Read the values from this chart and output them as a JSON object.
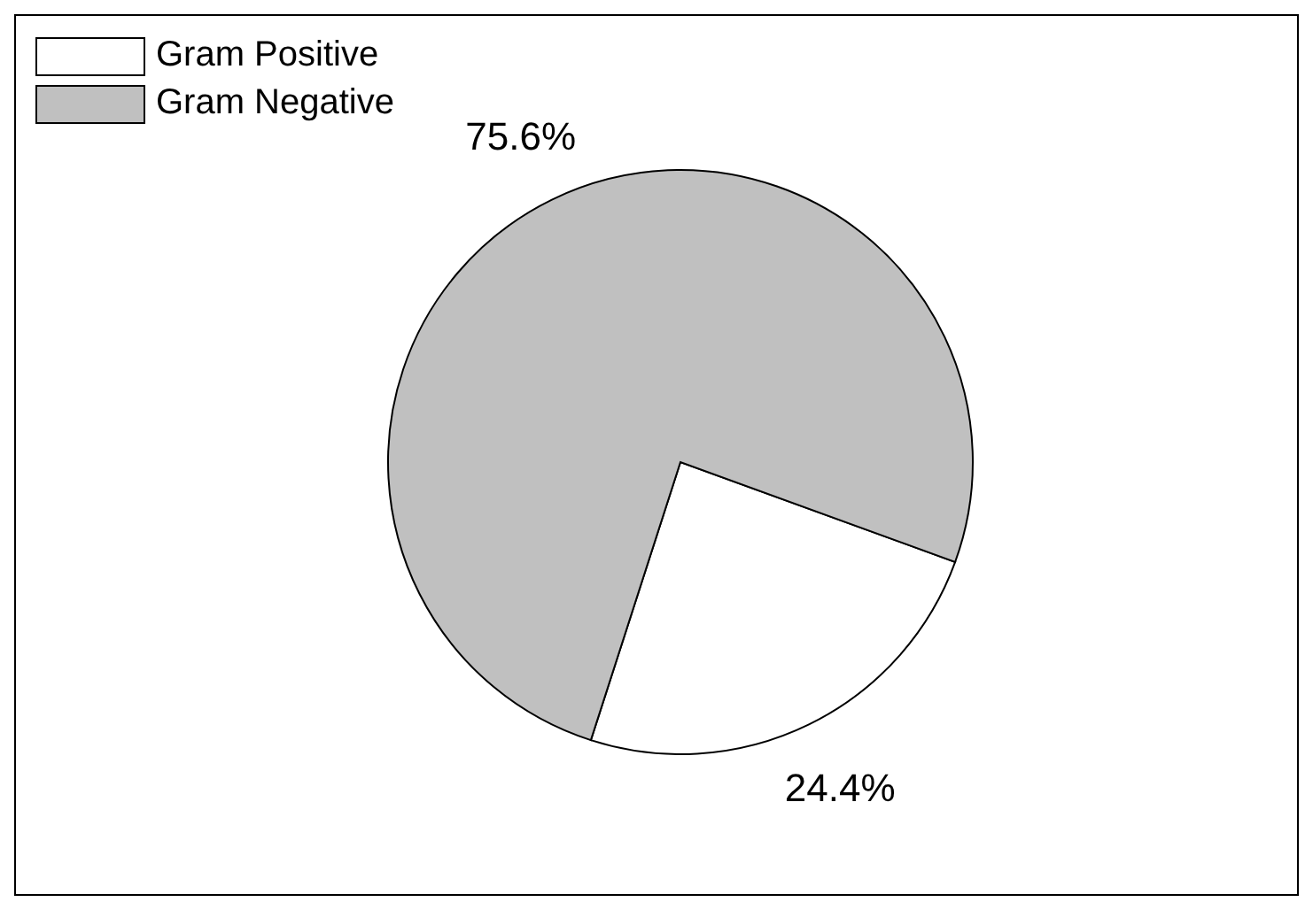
{
  "chart_data": {
    "type": "pie",
    "categories": [
      "Gram Positive",
      "Gram Negative"
    ],
    "values": [
      24.4,
      75.6
    ],
    "colors": [
      "#ffffff",
      "#c0c0c0"
    ],
    "value_labels": [
      "24.4%",
      "75.6%"
    ],
    "legend": "top left"
  }
}
